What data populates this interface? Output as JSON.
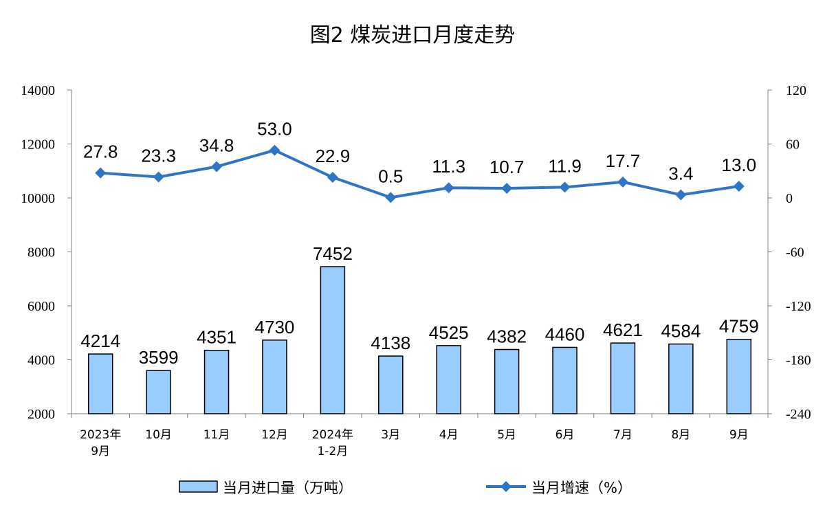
{
  "chart_data": {
    "type": "bar+line",
    "title": "图2 煤炭进口月度走势",
    "categories": [
      [
        "2023年",
        "9月"
      ],
      [
        "10月"
      ],
      [
        "11月"
      ],
      [
        "12月"
      ],
      [
        "2024年",
        "1-2月"
      ],
      [
        "3月"
      ],
      [
        "4月"
      ],
      [
        "5月"
      ],
      [
        "6月"
      ],
      [
        "7月"
      ],
      [
        "8月"
      ],
      [
        "9月"
      ]
    ],
    "series": [
      {
        "name": "当月进口量（万吨）",
        "type": "bar",
        "axis": "left",
        "color": "#99CCFF",
        "values": [
          4214,
          3599,
          4351,
          4730,
          7452,
          4138,
          4525,
          4382,
          4460,
          4621,
          4584,
          4759
        ]
      },
      {
        "name": "当月增速（%）",
        "type": "line",
        "axis": "right",
        "color": "#2E75C7",
        "values": [
          27.8,
          23.3,
          34.8,
          53.0,
          22.9,
          0.5,
          11.3,
          10.7,
          11.9,
          17.7,
          3.4,
          13.0
        ]
      }
    ],
    "y_left": {
      "min": 2000,
      "max": 14000,
      "ticks": [
        2000,
        4000,
        6000,
        8000,
        10000,
        12000,
        14000
      ]
    },
    "y_right": {
      "min": -240,
      "max": 120,
      "ticks": [
        -240,
        -180,
        -120,
        -60,
        0,
        60,
        120
      ]
    },
    "grid": false,
    "legend_position": "bottom"
  }
}
